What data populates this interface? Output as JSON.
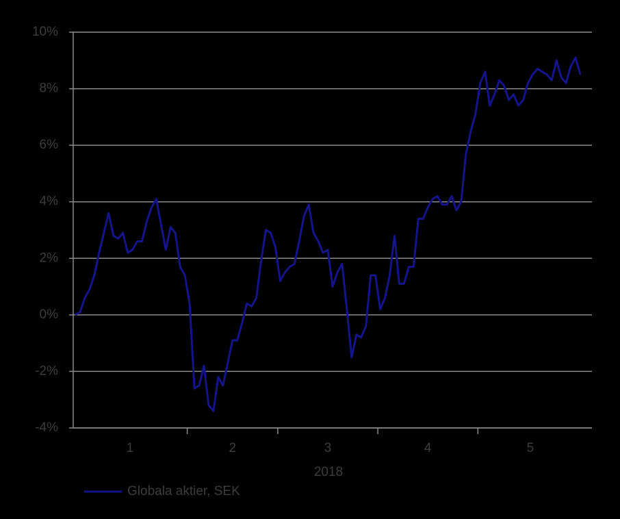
{
  "chart_data": {
    "type": "line",
    "xlabel": "2018",
    "groups": [
      {
        "label": "1",
        "values": [
          0,
          0.1,
          0.6,
          0.9,
          1.4,
          2.2,
          2.9,
          3.6,
          2.8,
          2.7,
          2.9,
          2.2,
          2.3,
          2.6,
          2.6,
          3.3,
          3.8,
          4.1,
          3.2,
          2.3,
          3.1,
          2.9,
          1.7,
          1.4
        ]
      },
      {
        "label": "2",
        "values": [
          0.4,
          -2.6,
          -2.5,
          -1.8,
          -3.2,
          -3.4,
          -2.2,
          -2.5,
          -1.7,
          -0.9,
          -0.9,
          -0.3,
          0.4,
          0.3,
          0.6,
          1.9,
          3.0,
          2.9,
          2.4
        ]
      },
      {
        "label": "3",
        "values": [
          1.2,
          1.5,
          1.7,
          1.8,
          2.6,
          3.5,
          3.9,
          2.9,
          2.6,
          2.2,
          2.3,
          1.0,
          1.5,
          1.8,
          0.2,
          -1.5,
          -0.7,
          -0.8,
          -0.4,
          1.4,
          1.4
        ]
      },
      {
        "label": "4",
        "values": [
          0.2,
          0.6,
          1.4,
          2.8,
          1.1,
          1.1,
          1.7,
          1.7,
          3.4,
          3.4,
          3.8,
          4.1,
          4.2,
          3.9,
          3.9,
          4.2,
          3.7,
          4.0,
          5.7,
          6.5,
          7.1
        ]
      },
      {
        "label": "5",
        "values": [
          8.2,
          8.6,
          7.4,
          7.8,
          8.3,
          8.1,
          7.6,
          7.8,
          7.4,
          7.6,
          8.2,
          8.5,
          8.7,
          8.6,
          8.5,
          8.3,
          9.0,
          8.4,
          8.2,
          8.8,
          9.1,
          8.5
        ]
      }
    ],
    "series_name": "Globala aktier, SEK",
    "color": "#14148c",
    "ylim": [
      -4,
      10
    ],
    "yticks": [
      {
        "value": -4,
        "label": "-4%"
      },
      {
        "value": -2,
        "label": "-2%"
      },
      {
        "value": 0,
        "label": "0%"
      },
      {
        "value": 2,
        "label": "2%"
      },
      {
        "value": 4,
        "label": "4%"
      },
      {
        "value": 6,
        "label": "6%"
      },
      {
        "value": 8,
        "label": "8%"
      },
      {
        "value": 10,
        "label": "10%"
      }
    ],
    "grid": true
  }
}
